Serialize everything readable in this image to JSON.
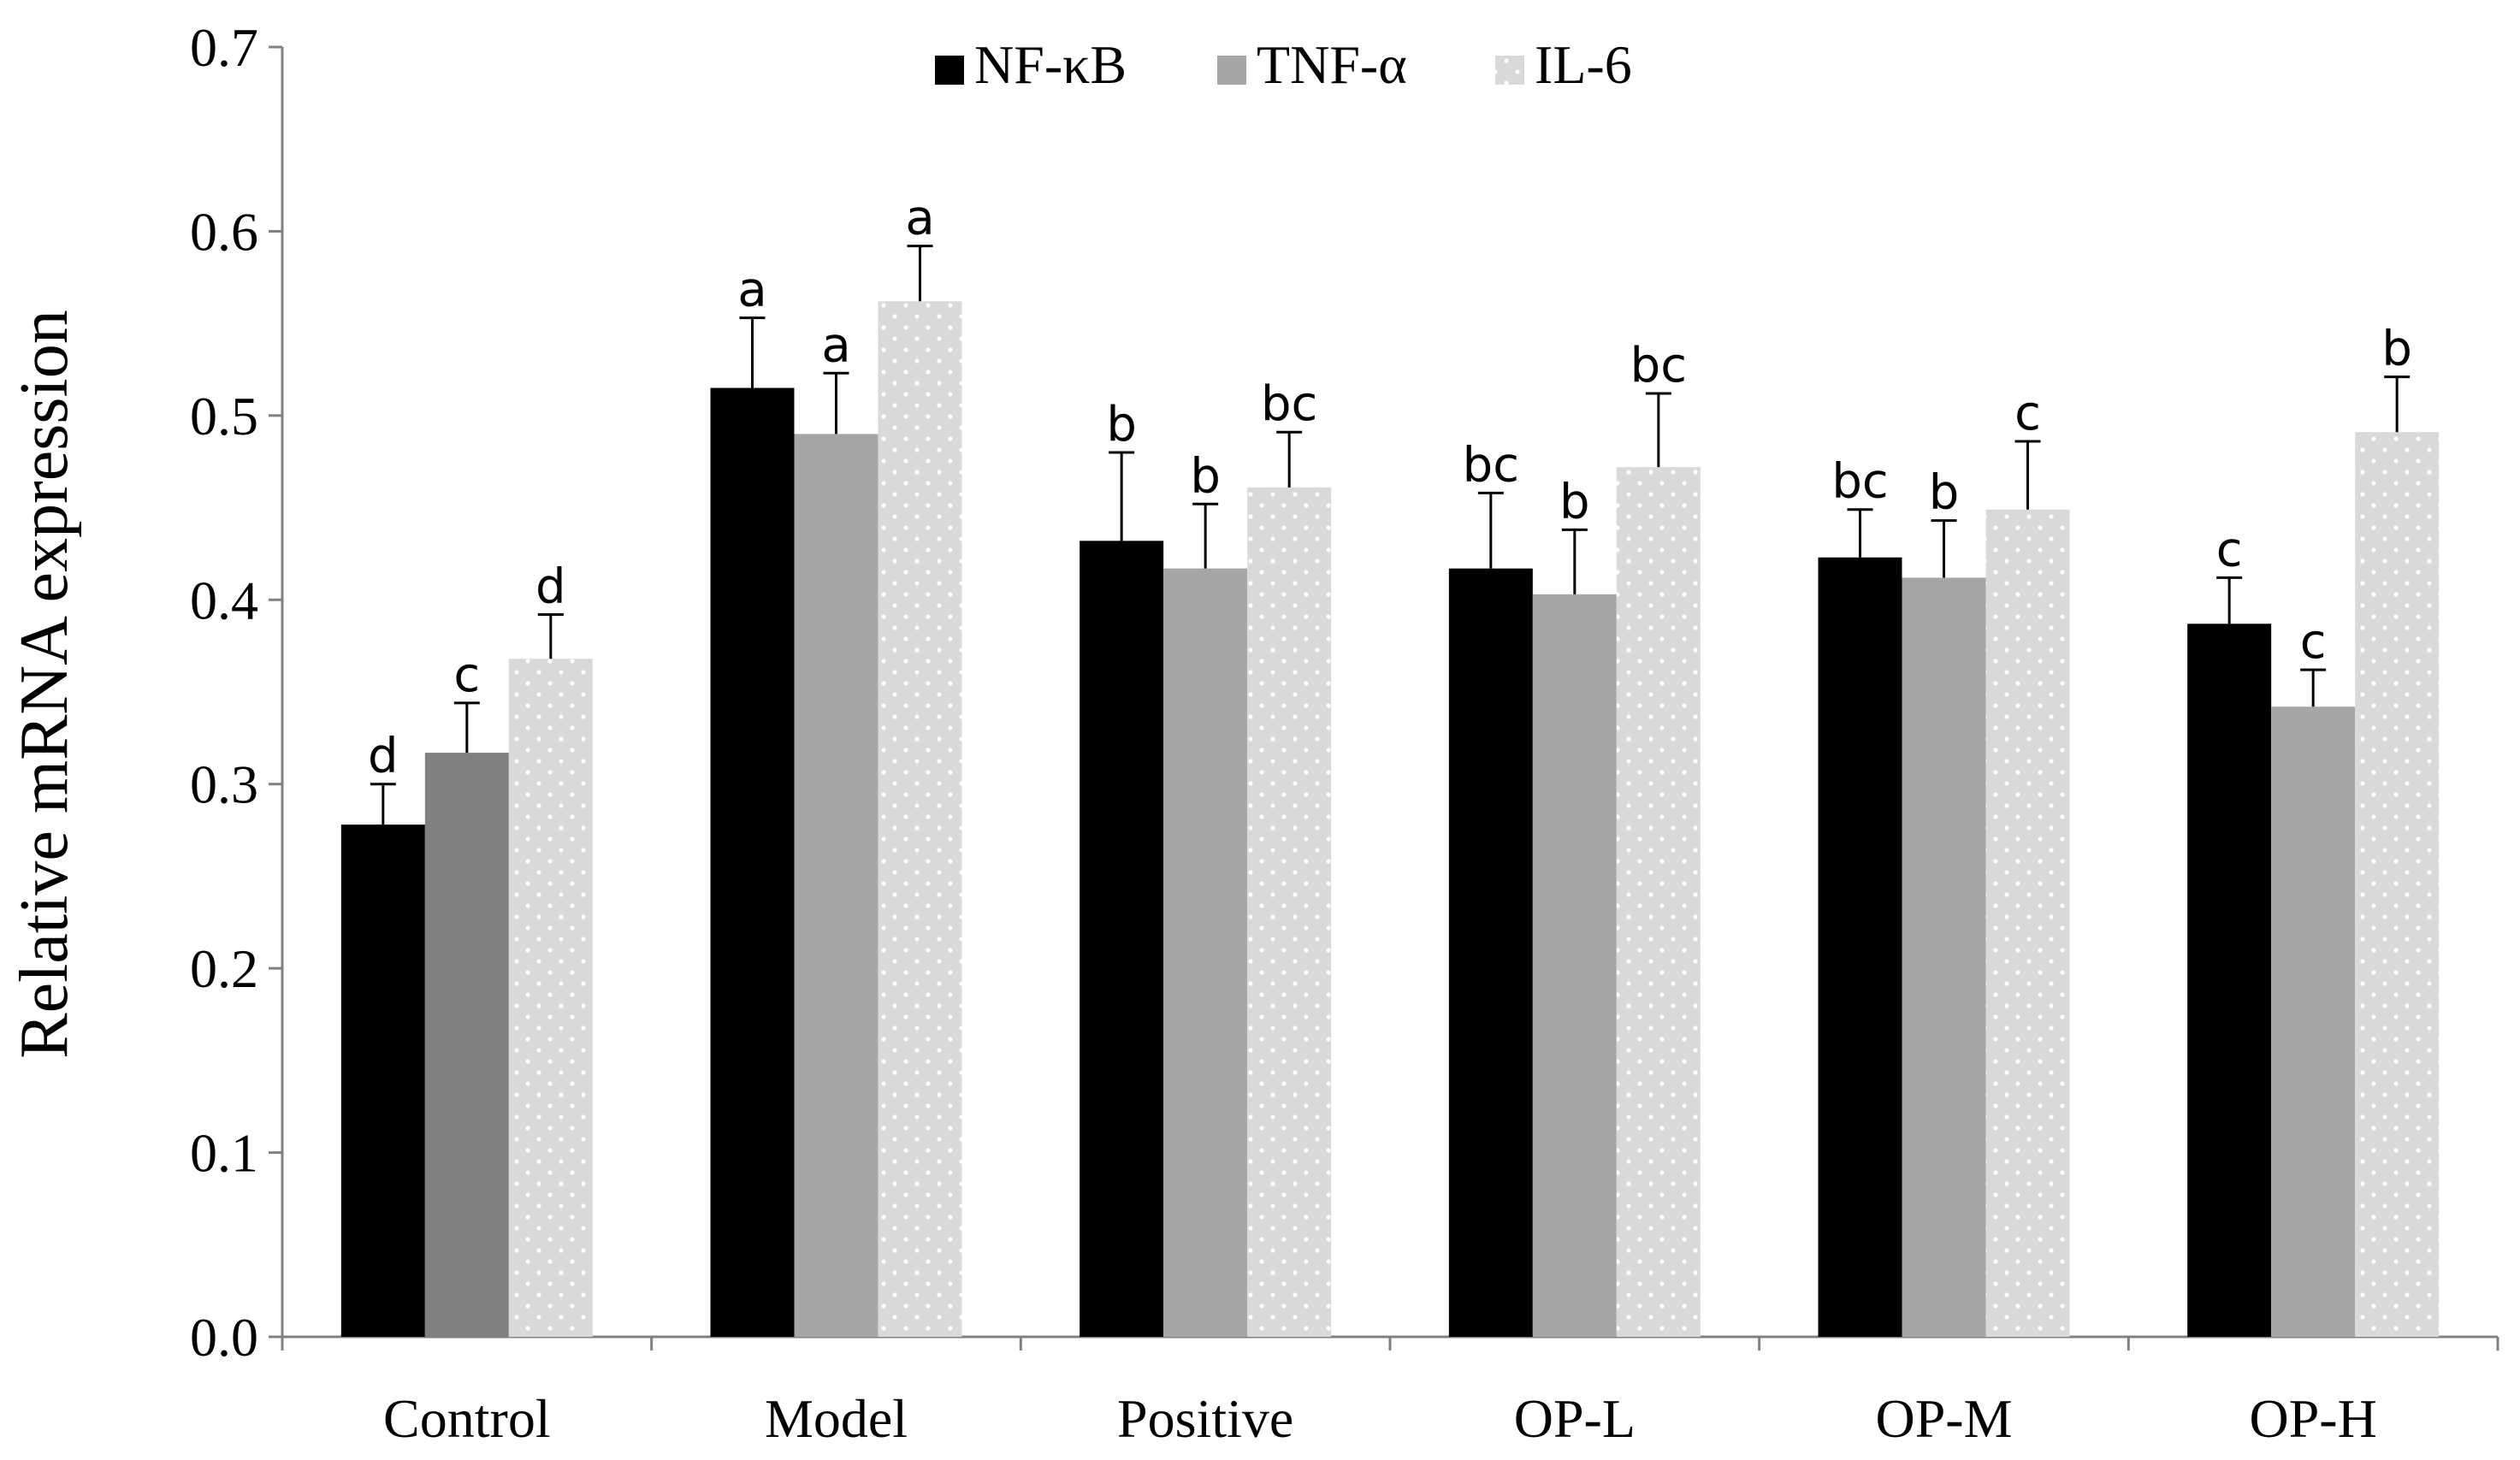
{
  "chart_data": {
    "type": "bar",
    "ylabel": "Relative mRNA expression",
    "xlabel": "",
    "title": "",
    "categories": [
      "Control",
      "Model",
      "Positive",
      "OP-L",
      "OP-M",
      "OP-H"
    ],
    "ylim": [
      0.0,
      0.7
    ],
    "yticks": [
      "0.0",
      "0.1",
      "0.2",
      "0.3",
      "0.4",
      "0.5",
      "0.6",
      "0.7"
    ],
    "legend_position": "top-center",
    "series": [
      {
        "name": "NF-κB",
        "color": "#000000",
        "pattern": "solid",
        "values": [
          0.278,
          0.515,
          0.432,
          0.417,
          0.423,
          0.387
        ],
        "errors": [
          0.022,
          0.038,
          0.048,
          0.041,
          0.026,
          0.025
        ],
        "labels": [
          "d",
          "a",
          "b",
          "bc",
          "bc",
          "c"
        ]
      },
      {
        "name": "TNF-α",
        "color": "#a6a6a6",
        "control_color": "#808080",
        "pattern": "solid",
        "values": [
          0.317,
          0.49,
          0.417,
          0.403,
          0.412,
          0.342
        ],
        "errors": [
          0.027,
          0.033,
          0.035,
          0.035,
          0.031,
          0.02
        ],
        "labels": [
          "c",
          "a",
          "b",
          "b",
          "b",
          "c"
        ]
      },
      {
        "name": "IL-6",
        "color": "#d9d9d9",
        "pattern": "dotted",
        "values": [
          0.368,
          0.562,
          0.461,
          0.472,
          0.449,
          0.491
        ],
        "errors": [
          0.024,
          0.03,
          0.03,
          0.04,
          0.037,
          0.03
        ],
        "labels": [
          "d",
          "a",
          "bc",
          "bc",
          "c",
          "b"
        ]
      }
    ]
  }
}
